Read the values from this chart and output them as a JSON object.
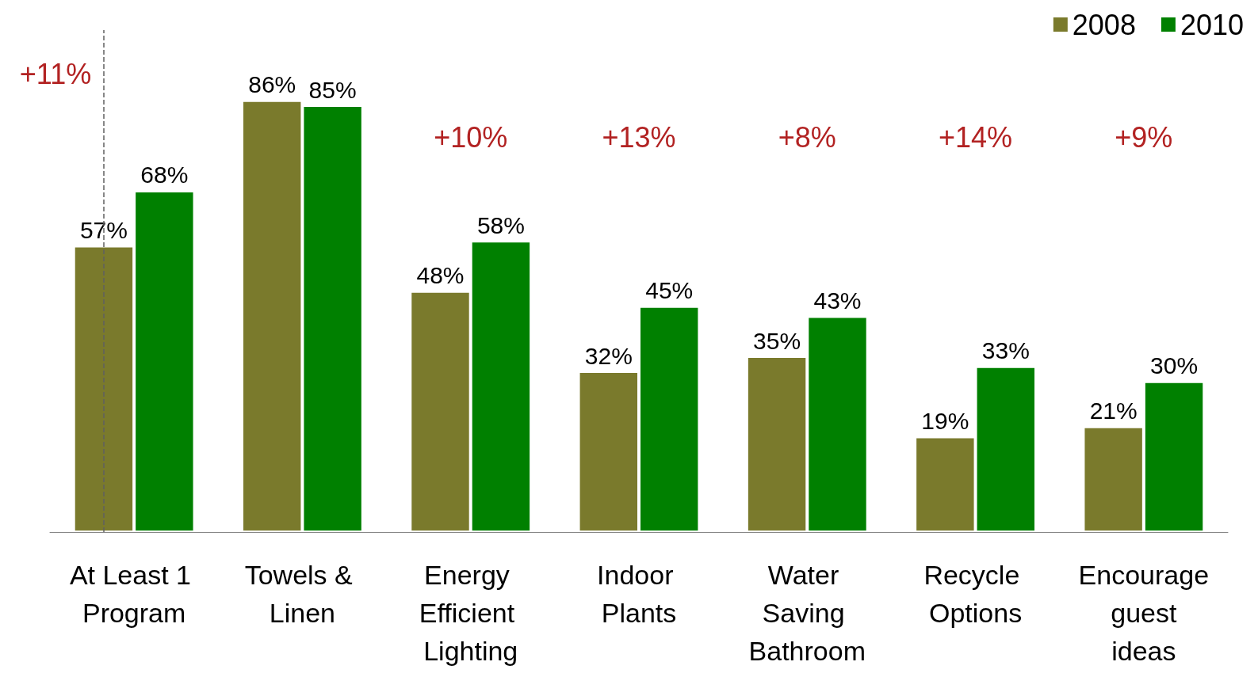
{
  "chart_data": {
    "type": "bar",
    "categories": [
      "At Least 1 Program",
      "Towels & Linen",
      "Energy Efficient Lighting",
      "Indoor Plants",
      "Water Saving Bathroom",
      "Recycle Options",
      "Encourage guest ideas"
    ],
    "series": [
      {
        "name": "2008",
        "color": "#7a7a2c",
        "values": [
          57,
          86,
          48,
          32,
          35,
          19,
          21
        ],
        "value_labels": [
          "57%",
          "86%",
          "48%",
          "32%",
          "35%",
          "19%",
          "21%"
        ]
      },
      {
        "name": "2010",
        "color": "#008000",
        "values": [
          68,
          85,
          58,
          45,
          43,
          33,
          30
        ],
        "value_labels": [
          "68%",
          "85%",
          "58%",
          "45%",
          "43%",
          "33%",
          "30%"
        ]
      }
    ],
    "annotations": [
      "+11%",
      "+10%",
      "+13%",
      "+8%",
      "+14%",
      "+9%"
    ],
    "ref_lines": [
      {
        "axis": "x",
        "value": "At Least 1 Program",
        "color": "#606060",
        "line_style": "dashed"
      }
    ],
    "legend": "top right",
    "tick_labels": "x"
  }
}
